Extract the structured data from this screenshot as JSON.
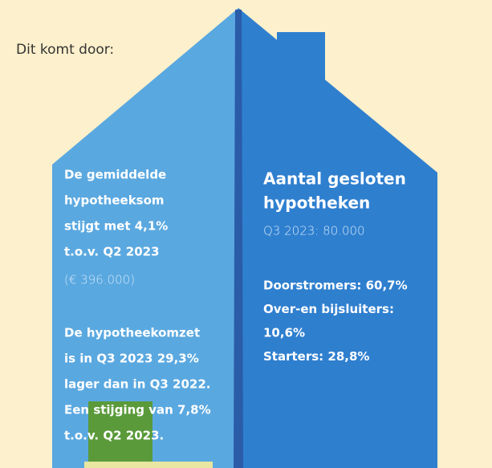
{
  "intro": "Dit komt door:",
  "left": {
    "block1": {
      "lines": [
        "De gemiddelde",
        "hypotheeksom",
        "stijgt met 4,1%",
        "t.o.v. Q2 2023"
      ],
      "note": "(€ 396.000)"
    },
    "block2": {
      "lines": [
        "De hypotheekomzet",
        "is in Q3 2023 29,3%",
        "lager dan in Q3 2022.",
        "Een stijging van 7,8%",
        "t.o.v. Q2 2023."
      ]
    }
  },
  "right": {
    "heading": [
      "Aantal gesloten",
      "hypotheken"
    ],
    "subheading": "Q3 2023: 80.000",
    "items": [
      "Doorstromers: 60,7%",
      "Over-en bijsluiters:",
      "10,6%",
      "Starters: 28,8%"
    ]
  }
}
